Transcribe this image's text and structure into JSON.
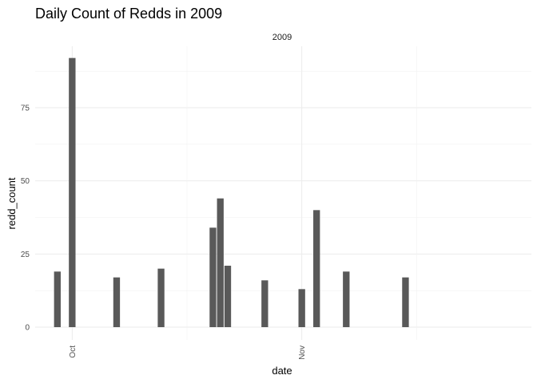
{
  "chart_data": {
    "type": "bar",
    "title": "Daily Count of Redds in 2009",
    "facet_label": "2009",
    "xlabel": "date",
    "ylabel": "redd_count",
    "x_tick_labels": [
      {
        "label": "Oct",
        "date": "2009-10-01"
      },
      {
        "label": "Nov",
        "date": "2009-11-01"
      }
    ],
    "y_ticks": [
      0,
      25,
      50,
      75
    ],
    "ylim": [
      0,
      95
    ],
    "xlim": [
      "2009-09-26",
      "2009-12-02"
    ],
    "grid": true,
    "bar_color": "#595959",
    "points": [
      {
        "date": "2009-09-29",
        "value": 19
      },
      {
        "date": "2009-10-01",
        "value": 92
      },
      {
        "date": "2009-10-07",
        "value": 17
      },
      {
        "date": "2009-10-13",
        "value": 20
      },
      {
        "date": "2009-10-20",
        "value": 34
      },
      {
        "date": "2009-10-21",
        "value": 44
      },
      {
        "date": "2009-10-22",
        "value": 21
      },
      {
        "date": "2009-10-27",
        "value": 16
      },
      {
        "date": "2009-11-01",
        "value": 13
      },
      {
        "date": "2009-11-03",
        "value": 40
      },
      {
        "date": "2009-11-07",
        "value": 19
      },
      {
        "date": "2009-11-15",
        "value": 17
      }
    ]
  }
}
